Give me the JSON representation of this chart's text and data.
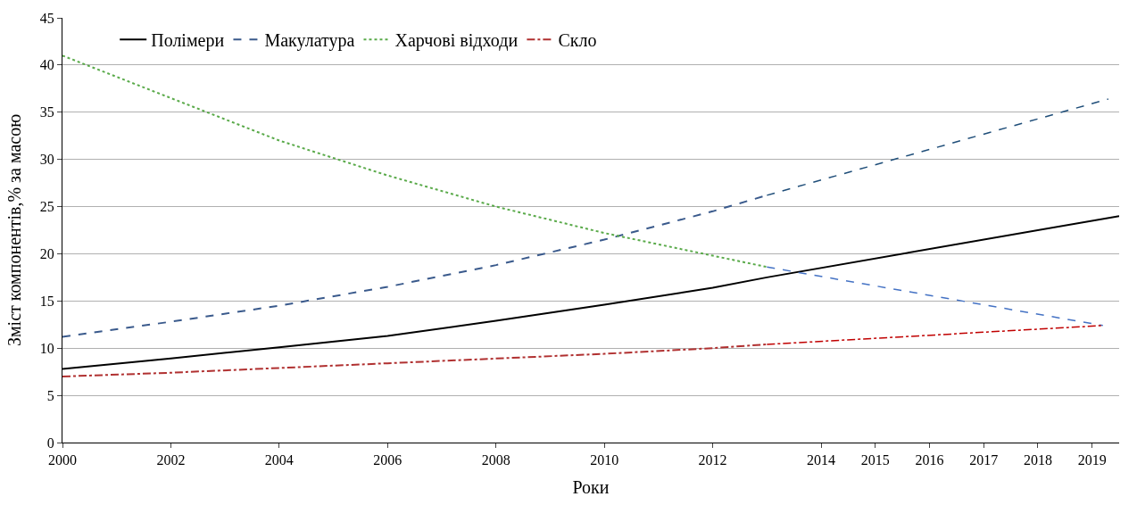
{
  "chart_data": {
    "type": "line",
    "xlabel": "Роки",
    "ylabel": "Зміст компонентів,% за масою",
    "xlim": [
      2000,
      2019.5
    ],
    "xticks": [
      2000,
      2002,
      2004,
      2006,
      2008,
      2010,
      2012,
      2014,
      2015,
      2016,
      2017,
      2018,
      2019
    ],
    "ylim": [
      0,
      45
    ],
    "yticks": [
      0,
      5,
      10,
      15,
      20,
      25,
      30,
      35,
      40,
      45
    ],
    "grid": "y",
    "legend": "top",
    "marker": "none",
    "series": [
      {
        "name": "Полімери",
        "color": "#000000",
        "line_style": "solid",
        "x": [
          2000,
          2002,
          2004,
          2006,
          2008,
          2010,
          2012,
          2013,
          2019.5
        ],
        "values": [
          7.8,
          8.9,
          10.1,
          11.3,
          12.9,
          14.6,
          16.4,
          17.5,
          24.0
        ]
      },
      {
        "name": "Макулатура",
        "color": "#3a5a8c",
        "line_style": "dashed",
        "x": [
          2000,
          2002,
          2004,
          2006,
          2008,
          2010,
          2012,
          2013
        ],
        "values": [
          11.2,
          12.8,
          14.5,
          16.5,
          18.8,
          21.5,
          24.5,
          26.2
        ]
      },
      {
        "name": "Харчові відходи",
        "color": "#5aaa4a",
        "line_style": "dotted",
        "x": [
          2000,
          2002,
          2004,
          2006,
          2008,
          2010,
          2012,
          2013
        ],
        "values": [
          41,
          36.5,
          32,
          28.3,
          25,
          22.2,
          19.8,
          18.6
        ]
      },
      {
        "name": "Скло",
        "color": "#b03030",
        "line_style": "dashdot",
        "x": [
          2000,
          2002,
          2004,
          2006,
          2008,
          2010,
          2012,
          2013
        ],
        "values": [
          7.0,
          7.4,
          7.9,
          8.4,
          8.9,
          9.4,
          10.0,
          10.4
        ]
      },
      {
        "color": "#1f4e79",
        "line_style": "dashed",
        "x": [
          2013,
          2019.3
        ],
        "values": [
          26.2,
          36.4
        ]
      },
      {
        "color": "#4472c4",
        "line_style": "dashed",
        "x": [
          2013,
          2019.2
        ],
        "values": [
          18.6,
          12.4
        ]
      },
      {
        "color": "#c00000",
        "line_style": "dashdot",
        "x": [
          2013,
          2019.2
        ],
        "values": [
          10.4,
          12.4
        ]
      }
    ]
  }
}
